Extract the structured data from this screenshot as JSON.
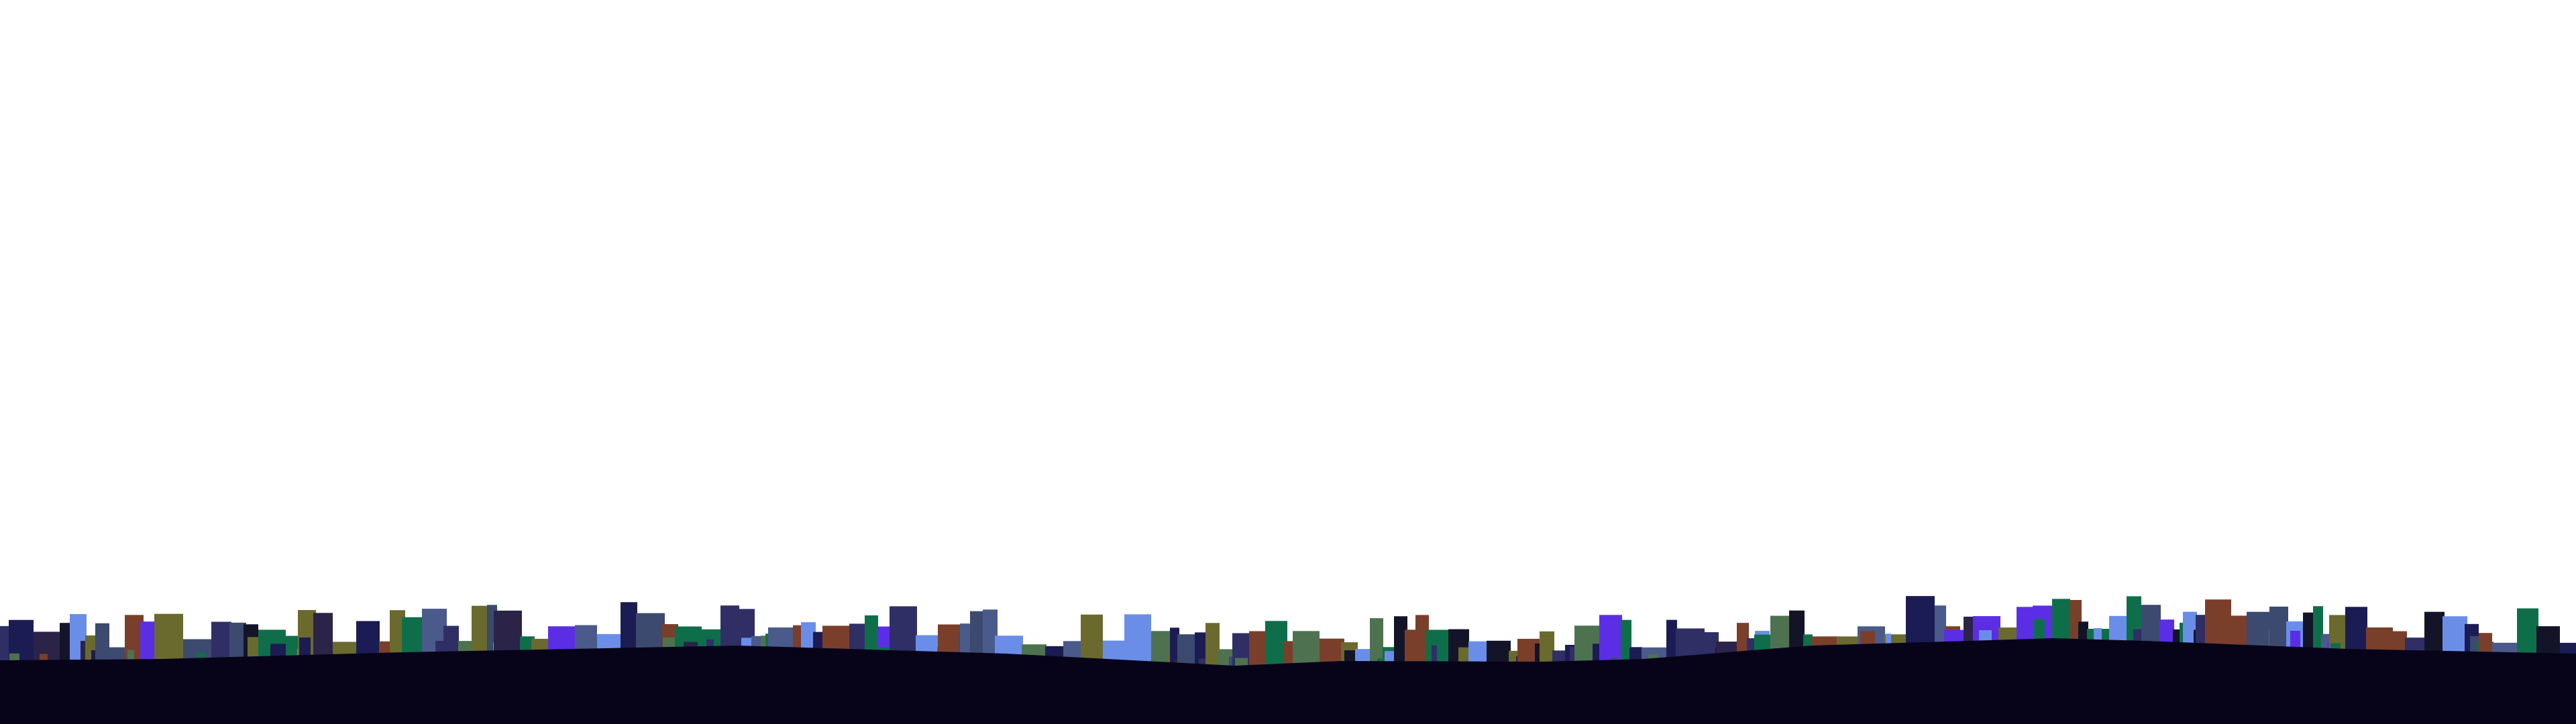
{
  "scene": {
    "background_color": "#ffffff",
    "ground_color": "#07041a",
    "building_palette": [
      "#5b2ee6",
      "#6a8ee8",
      "#2b2348",
      "#0f6e4a",
      "#7a3f2a",
      "#4e7250",
      "#6a6a2e",
      "#1c1c54",
      "#3b4a6e",
      "#141428",
      "#4a5a8a",
      "#2f2f66"
    ]
  }
}
